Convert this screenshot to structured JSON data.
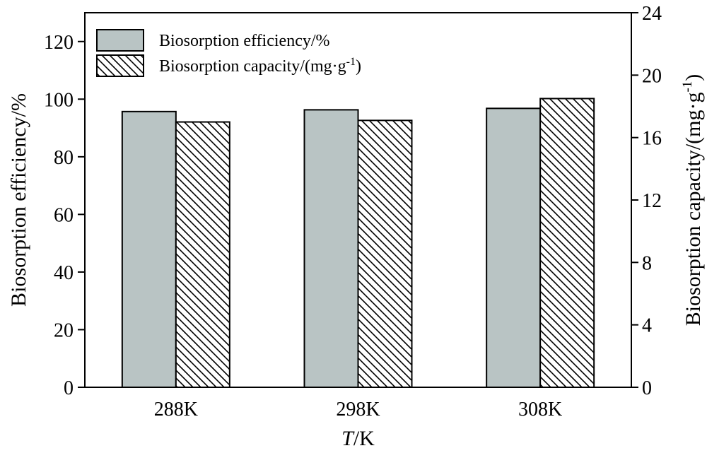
{
  "chart_data": {
    "type": "bar",
    "categories": [
      "288K",
      "298K",
      "308K"
    ],
    "series": [
      {
        "name": "Biosorption efficiency/%",
        "axis": "left",
        "values": [
          95.7,
          96.3,
          96.8
        ],
        "fill": "#b9c4c4",
        "pattern": "solid"
      },
      {
        "name": "Biosorption capacity/(mg·g⁻¹)",
        "axis": "right",
        "values": [
          17.0,
          17.1,
          18.5
        ],
        "fill": "#ffffff",
        "pattern": "diagonal-hatch"
      }
    ],
    "xlabel": {
      "italic": "T",
      "rest": "/K"
    },
    "ylabel_left": "Biosorption efficiency/%",
    "ylabel_right": "Biosorption capacity/(mg·g⁻¹)",
    "ylim_left": [
      0,
      130
    ],
    "yticks_left": [
      0,
      20,
      40,
      60,
      80,
      100,
      120
    ],
    "ylim_right": [
      0,
      24
    ],
    "yticks_right": [
      0,
      4,
      8,
      12,
      16,
      20,
      24
    ],
    "grid": false,
    "legend": "top-left"
  }
}
